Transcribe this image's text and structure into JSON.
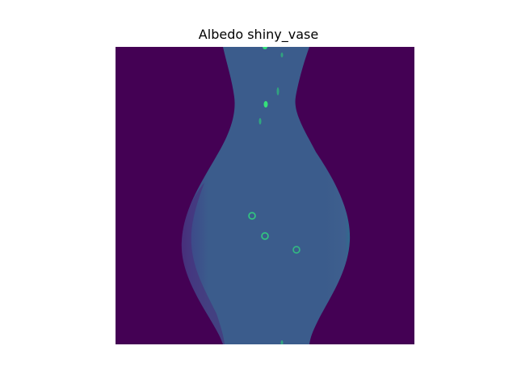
{
  "figure": {
    "title": "Albedo shiny_vase"
  },
  "image": {
    "subject": "vase-silhouette-albedo-map",
    "colormap": "viridis",
    "colors": {
      "background": "#440154",
      "vase_fill": "#3b5c8c",
      "vase_shade": "#46337e",
      "highlight": "#35e07a"
    }
  }
}
